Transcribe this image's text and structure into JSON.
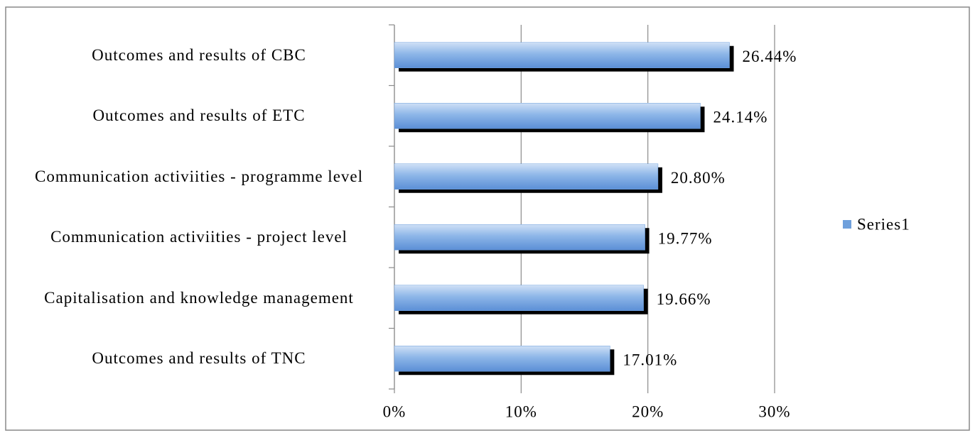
{
  "chart_data": {
    "type": "bar",
    "orientation": "horizontal",
    "categories": [
      "Outcomes and results of CBC",
      "Outcomes and results of ETC",
      "Communication activiities - programme level",
      "Communication activiities - project level",
      "Capitalisation and knowledge management",
      "Outcomes and results of TNC"
    ],
    "series": [
      {
        "name": "Series1",
        "color": "#6fa0dc",
        "values": [
          26.44,
          24.14,
          20.8,
          19.77,
          19.66,
          17.01
        ],
        "value_labels": [
          "26.44%",
          "24.14%",
          "20.80%",
          "19.77%",
          "19.66%",
          "17.01%"
        ]
      }
    ],
    "xlim": [
      0,
      30
    ],
    "xticks": [
      {
        "value": 0,
        "label": "0%"
      },
      {
        "value": 10,
        "label": "10%"
      },
      {
        "value": 20,
        "label": "20%"
      },
      {
        "value": 30,
        "label": "30%"
      }
    ],
    "grid": true,
    "legend": "right"
  }
}
